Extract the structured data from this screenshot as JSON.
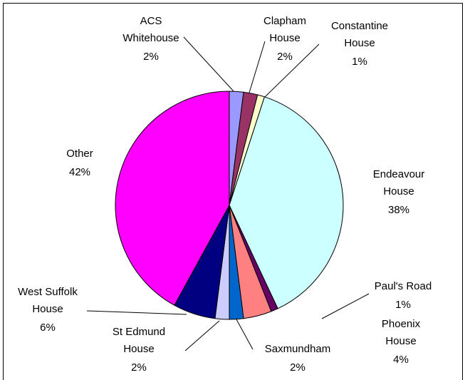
{
  "chart_data": {
    "type": "pie",
    "categories": [
      "ACS Whitehouse",
      "Clapham House",
      "Constantine House",
      "Endeavour House",
      "Paul's Road",
      "Phoenix House",
      "Saxmundham",
      "St Edmund House",
      "West Suffolk House",
      "Other"
    ],
    "values": [
      2,
      2,
      1,
      38,
      1,
      4,
      2,
      2,
      6,
      42
    ],
    "value_labels": [
      "2%",
      "2%",
      "1%",
      "38%",
      "1%",
      "4%",
      "2%",
      "2%",
      "6%",
      "42%"
    ],
    "colors": [
      "#9999ff",
      "#993366",
      "#ffffcc",
      "#ccffff",
      "#660066",
      "#ff8080",
      "#0066cc",
      "#ccccff",
      "#000080",
      "#ff00ff"
    ]
  }
}
